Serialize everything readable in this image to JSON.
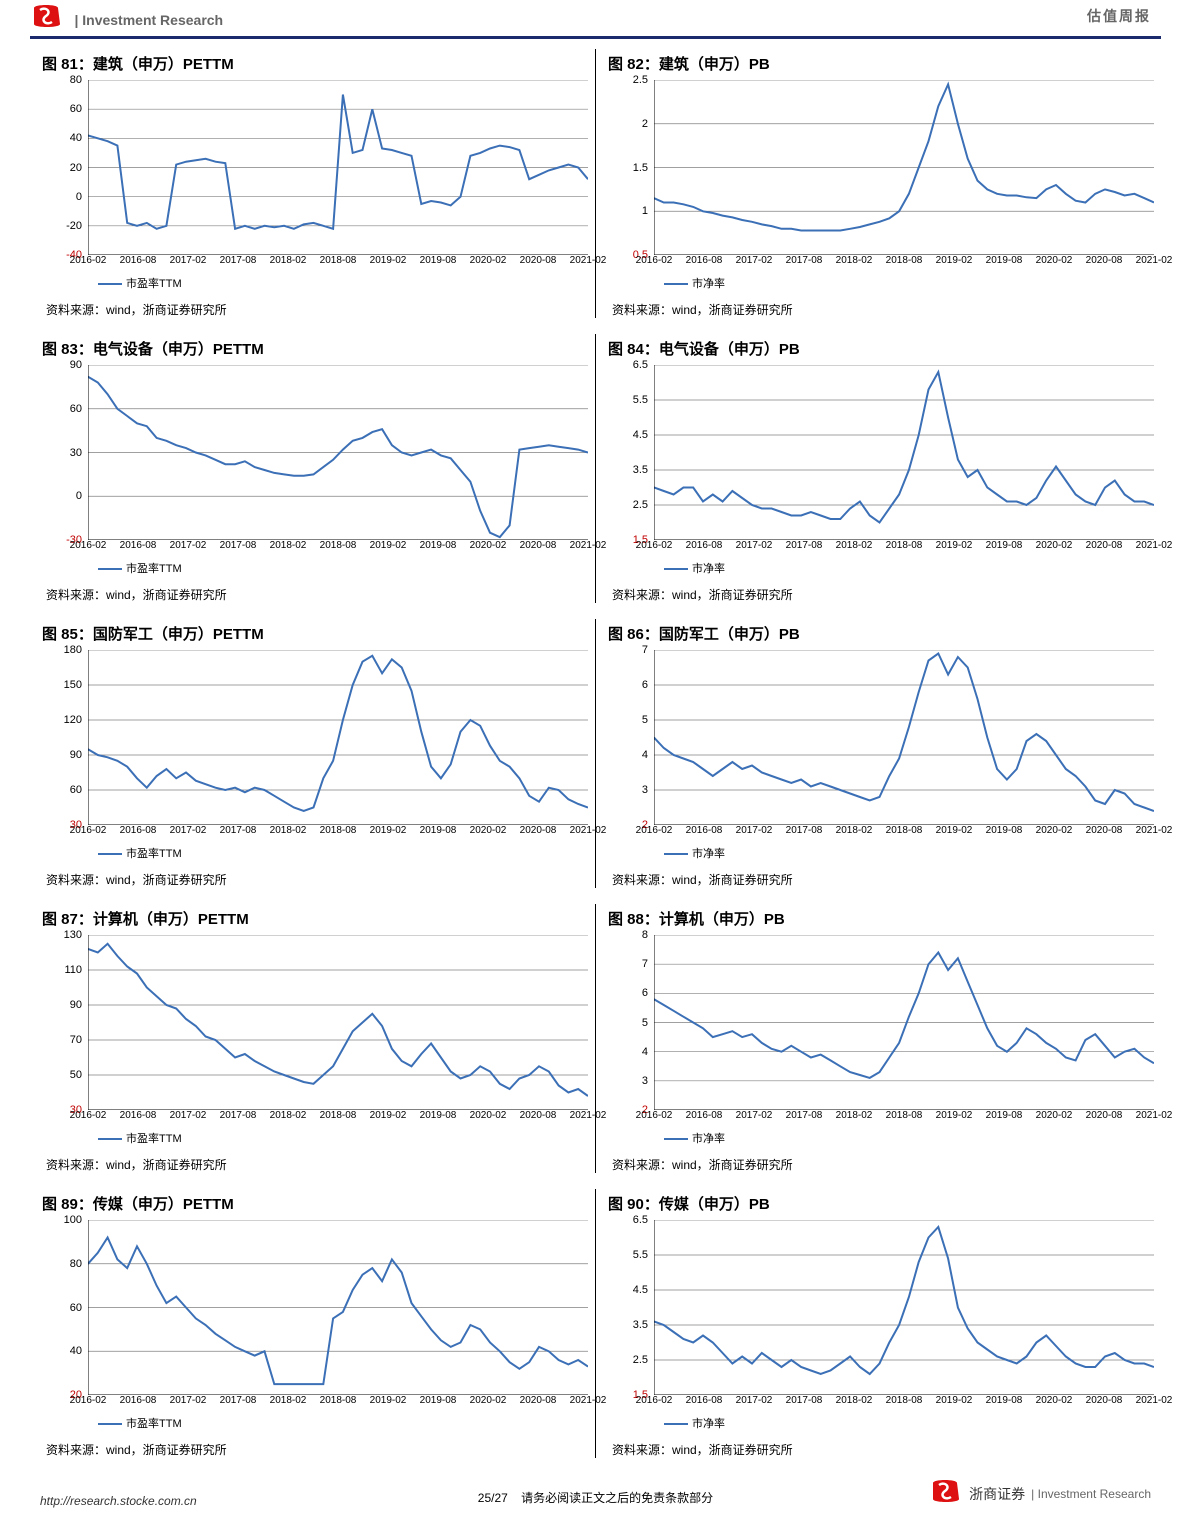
{
  "header": {
    "left_text": "| Investment Research",
    "right_text": "估值周报"
  },
  "chart_defaults": {
    "line_color": "#3b6fb6",
    "line_width": 2,
    "axis_color": "#000000",
    "grid_color": "#808080",
    "grid_width": 0.7,
    "background_color": "#ffffff",
    "current_tick_color": "#c00000",
    "font_size_axis": 11,
    "font_size_title": 15
  },
  "x_axis": {
    "labels": [
      "2016-02",
      "2016-08",
      "2017-02",
      "2017-08",
      "2018-02",
      "2018-08",
      "2019-02",
      "2019-08",
      "2020-02",
      "2020-08",
      "2021-02"
    ]
  },
  "source_text": "资料来源：wind，浙商证券研究所",
  "legend_label_pe": "市盈率TTM",
  "legend_label_pb": "市净率",
  "charts": [
    {
      "row": 0,
      "col": 0,
      "title": "图 81：建筑（申万）PETTM",
      "type": "line",
      "y": {
        "min": -40,
        "max": 80,
        "step": 20,
        "current": -40
      },
      "legend": "pe",
      "values": [
        42,
        40,
        38,
        35,
        -18,
        -20,
        -18,
        -22,
        -20,
        22,
        24,
        25,
        26,
        24,
        23,
        -22,
        -20,
        -22,
        -20,
        -21,
        -20,
        -22,
        -19,
        -18,
        -20,
        -22,
        70,
        30,
        32,
        60,
        33,
        32,
        30,
        28,
        -5,
        -3,
        -4,
        -6,
        0,
        28,
        30,
        33,
        35,
        34,
        32,
        12,
        15,
        18,
        20,
        22,
        20,
        12
      ]
    },
    {
      "row": 0,
      "col": 1,
      "title": "图 82：建筑（申万）PB",
      "type": "line",
      "y": {
        "min": 0.5,
        "max": 2.5,
        "step": 0.5,
        "current": 0.5
      },
      "legend": "pb",
      "values": [
        1.15,
        1.1,
        1.1,
        1.08,
        1.05,
        1.0,
        0.98,
        0.95,
        0.93,
        0.9,
        0.88,
        0.85,
        0.83,
        0.8,
        0.8,
        0.78,
        0.78,
        0.78,
        0.78,
        0.78,
        0.8,
        0.82,
        0.85,
        0.88,
        0.92,
        1.0,
        1.2,
        1.5,
        1.8,
        2.2,
        2.45,
        2.0,
        1.6,
        1.35,
        1.25,
        1.2,
        1.18,
        1.18,
        1.16,
        1.15,
        1.25,
        1.3,
        1.2,
        1.12,
        1.1,
        1.2,
        1.25,
        1.22,
        1.18,
        1.2,
        1.15,
        1.1
      ]
    },
    {
      "row": 1,
      "col": 0,
      "title": "图 83：电气设备（申万）PETTM",
      "type": "line",
      "y": {
        "min": -30,
        "max": 90,
        "step": 30,
        "current": -30
      },
      "legend": "pe",
      "values": [
        82,
        78,
        70,
        60,
        55,
        50,
        48,
        40,
        38,
        35,
        33,
        30,
        28,
        25,
        22,
        22,
        24,
        20,
        18,
        16,
        15,
        14,
        14,
        15,
        20,
        25,
        32,
        38,
        40,
        44,
        46,
        35,
        30,
        28,
        30,
        32,
        28,
        26,
        18,
        10,
        -10,
        -25,
        -28,
        -20,
        32,
        33,
        34,
        35,
        34,
        33,
        32,
        30
      ]
    },
    {
      "row": 1,
      "col": 1,
      "title": "图 84：电气设备（申万）PB",
      "type": "line",
      "y": {
        "min": 1.5,
        "max": 6.5,
        "step": 1,
        "current": 1.5
      },
      "legend": "pb",
      "values": [
        3.0,
        2.9,
        2.8,
        3.0,
        3.0,
        2.6,
        2.8,
        2.6,
        2.9,
        2.7,
        2.5,
        2.4,
        2.4,
        2.3,
        2.2,
        2.2,
        2.3,
        2.2,
        2.1,
        2.1,
        2.4,
        2.6,
        2.2,
        2.0,
        2.4,
        2.8,
        3.5,
        4.5,
        5.8,
        6.3,
        5.0,
        3.8,
        3.3,
        3.5,
        3.0,
        2.8,
        2.6,
        2.6,
        2.5,
        2.7,
        3.2,
        3.6,
        3.2,
        2.8,
        2.6,
        2.5,
        3.0,
        3.2,
        2.8,
        2.6,
        2.6,
        2.5
      ]
    },
    {
      "row": 2,
      "col": 0,
      "title": "图 85：国防军工（申万）PETTM",
      "type": "line",
      "y": {
        "min": 30,
        "max": 180,
        "step": 30,
        "current": 30
      },
      "legend": "pe",
      "values": [
        95,
        90,
        88,
        85,
        80,
        70,
        62,
        72,
        78,
        70,
        75,
        68,
        65,
        62,
        60,
        62,
        58,
        62,
        60,
        55,
        50,
        45,
        42,
        45,
        70,
        85,
        120,
        150,
        170,
        175,
        160,
        172,
        165,
        145,
        110,
        80,
        70,
        82,
        110,
        120,
        115,
        98,
        85,
        80,
        70,
        55,
        50,
        62,
        60,
        52,
        48,
        45
      ]
    },
    {
      "row": 2,
      "col": 1,
      "title": "图 86：国防军工（申万）PB",
      "type": "line",
      "y": {
        "min": 2,
        "max": 7,
        "step": 1,
        "current": 2
      },
      "legend": "pb",
      "values": [
        4.5,
        4.2,
        4.0,
        3.9,
        3.8,
        3.6,
        3.4,
        3.6,
        3.8,
        3.6,
        3.7,
        3.5,
        3.4,
        3.3,
        3.2,
        3.3,
        3.1,
        3.2,
        3.1,
        3.0,
        2.9,
        2.8,
        2.7,
        2.8,
        3.4,
        3.9,
        4.8,
        5.8,
        6.7,
        6.9,
        6.3,
        6.8,
        6.5,
        5.6,
        4.5,
        3.6,
        3.3,
        3.6,
        4.4,
        4.6,
        4.4,
        4.0,
        3.6,
        3.4,
        3.1,
        2.7,
        2.6,
        3.0,
        2.9,
        2.6,
        2.5,
        2.4
      ]
    },
    {
      "row": 3,
      "col": 0,
      "title": "图 87：计算机（申万）PETTM",
      "type": "line",
      "y": {
        "min": 30,
        "max": 130,
        "step": 20,
        "current": 30
      },
      "legend": "pe",
      "values": [
        122,
        120,
        125,
        118,
        112,
        108,
        100,
        95,
        90,
        88,
        82,
        78,
        72,
        70,
        65,
        60,
        62,
        58,
        55,
        52,
        50,
        48,
        46,
        45,
        50,
        55,
        65,
        75,
        80,
        85,
        78,
        65,
        58,
        55,
        62,
        68,
        60,
        52,
        48,
        50,
        55,
        52,
        45,
        42,
        48,
        50,
        55,
        52,
        44,
        40,
        42,
        38
      ]
    },
    {
      "row": 3,
      "col": 1,
      "title": "图 88：计算机（申万）PB",
      "type": "line",
      "y": {
        "min": 2,
        "max": 8,
        "step": 1,
        "current": 2
      },
      "legend": "pb",
      "values": [
        5.8,
        5.6,
        5.4,
        5.2,
        5.0,
        4.8,
        4.5,
        4.6,
        4.7,
        4.5,
        4.6,
        4.3,
        4.1,
        4.0,
        4.2,
        4.0,
        3.8,
        3.9,
        3.7,
        3.5,
        3.3,
        3.2,
        3.1,
        3.3,
        3.8,
        4.3,
        5.2,
        6.0,
        7.0,
        7.4,
        6.8,
        7.2,
        6.4,
        5.6,
        4.8,
        4.2,
        4.0,
        4.3,
        4.8,
        4.6,
        4.3,
        4.1,
        3.8,
        3.7,
        4.4,
        4.6,
        4.2,
        3.8,
        4.0,
        4.1,
        3.8,
        3.6
      ]
    },
    {
      "row": 4,
      "col": 0,
      "title": "图 89：传媒（申万）PETTM",
      "type": "line",
      "y": {
        "min": 20,
        "max": 100,
        "step": 20,
        "current": 20
      },
      "legend": "pe",
      "values": [
        80,
        85,
        92,
        82,
        78,
        88,
        80,
        70,
        62,
        65,
        60,
        55,
        52,
        48,
        45,
        42,
        40,
        38,
        40,
        25,
        25,
        25,
        25,
        25,
        25,
        55,
        58,
        68,
        75,
        78,
        72,
        82,
        76,
        62,
        56,
        50,
        45,
        42,
        44,
        52,
        50,
        44,
        40,
        35,
        32,
        35,
        42,
        40,
        36,
        34,
        36,
        33
      ]
    },
    {
      "row": 4,
      "col": 1,
      "title": "图 90：传媒（申万）PB",
      "type": "line",
      "y": {
        "min": 1.5,
        "max": 6.5,
        "step": 1,
        "current": 1.5
      },
      "legend": "pb",
      "values": [
        3.6,
        3.5,
        3.3,
        3.1,
        3.0,
        3.2,
        3.0,
        2.7,
        2.4,
        2.6,
        2.4,
        2.7,
        2.5,
        2.3,
        2.5,
        2.3,
        2.2,
        2.1,
        2.2,
        2.4,
        2.6,
        2.3,
        2.1,
        2.4,
        3.0,
        3.5,
        4.3,
        5.3,
        6.0,
        6.3,
        5.4,
        4.0,
        3.4,
        3.0,
        2.8,
        2.6,
        2.5,
        2.4,
        2.6,
        3.0,
        3.2,
        2.9,
        2.6,
        2.4,
        2.3,
        2.3,
        2.6,
        2.7,
        2.5,
        2.4,
        2.4,
        2.3
      ]
    }
  ],
  "footer": {
    "left": "http://research.stocke.com.cn",
    "center_page": "25/27",
    "center_suffix": "请务必阅读正文之后的免责条款部分",
    "right_cn": "浙商证券",
    "right_en": "| Investment Research"
  }
}
